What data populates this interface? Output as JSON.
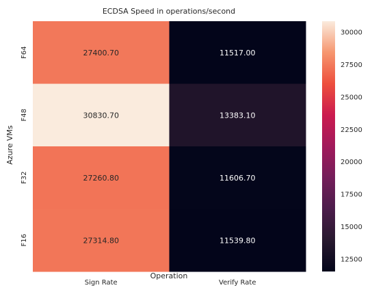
{
  "chart_data": {
    "type": "heatmap",
    "title": "ECDSA Speed in operations/second",
    "xlabel": "Operation",
    "ylabel": "Azure VMs",
    "x_categories": [
      "Sign Rate",
      "Verify Rate"
    ],
    "y_categories": [
      "F64",
      "F48",
      "F32",
      "F16"
    ],
    "values": [
      [
        27400.7,
        11517.0
      ],
      [
        30830.7,
        13383.1
      ],
      [
        27260.8,
        11606.7
      ],
      [
        27314.8,
        11539.8
      ]
    ],
    "value_labels": [
      [
        "27400.70",
        "11517.00"
      ],
      [
        "30830.70",
        "13383.10"
      ],
      [
        "27260.80",
        "11606.70"
      ],
      [
        "27314.80",
        "11539.80"
      ]
    ],
    "colormap": "rocket",
    "colorbar": {
      "range": [
        11517.0,
        30830.7
      ],
      "ticks": [
        12500,
        15000,
        17500,
        20000,
        22500,
        25000,
        27500,
        30000
      ]
    }
  }
}
